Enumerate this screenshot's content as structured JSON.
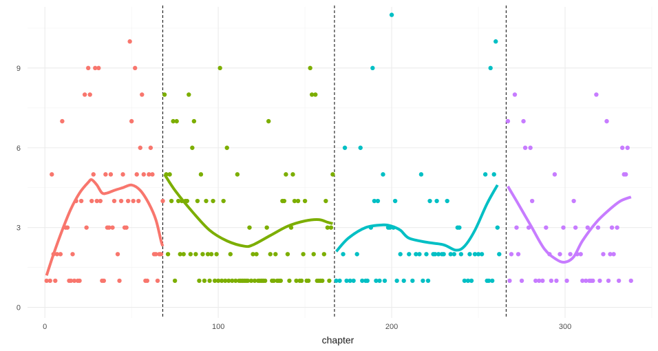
{
  "chart_data": {
    "type": "scatter",
    "title": "",
    "xlabel": "chapter",
    "ylabel": "",
    "xlim": [
      -10,
      350
    ],
    "ylim": [
      -0.4,
      11.3
    ],
    "x_ticks": [
      0,
      100,
      200,
      300
    ],
    "y_ticks": [
      0,
      3,
      6,
      9
    ],
    "grid": true,
    "legend": "none",
    "vlines": [
      68,
      167,
      266
    ],
    "series": [
      {
        "color": "#F8766D",
        "points": [
          [
            1,
            1
          ],
          [
            3,
            1
          ],
          [
            4,
            5
          ],
          [
            5,
            2
          ],
          [
            6,
            1
          ],
          [
            7,
            2
          ],
          [
            9,
            2
          ],
          [
            10,
            7
          ],
          [
            12,
            3
          ],
          [
            13,
            3
          ],
          [
            14,
            1
          ],
          [
            15,
            1
          ],
          [
            16,
            2
          ],
          [
            17,
            1
          ],
          [
            18,
            4
          ],
          [
            19,
            1
          ],
          [
            20,
            1
          ],
          [
            21,
            4
          ],
          [
            23,
            8
          ],
          [
            24,
            3
          ],
          [
            25,
            9
          ],
          [
            26,
            8
          ],
          [
            27,
            4
          ],
          [
            28,
            5
          ],
          [
            29,
            9
          ],
          [
            30,
            4
          ],
          [
            31,
            9
          ],
          [
            32,
            4
          ],
          [
            33,
            1
          ],
          [
            34,
            1
          ],
          [
            35,
            5
          ],
          [
            36,
            3
          ],
          [
            37,
            3
          ],
          [
            38,
            5
          ],
          [
            39,
            3
          ],
          [
            40,
            4
          ],
          [
            42,
            2
          ],
          [
            43,
            1
          ],
          [
            44,
            4
          ],
          [
            45,
            5
          ],
          [
            46,
            3
          ],
          [
            47,
            3
          ],
          [
            48,
            4
          ],
          [
            49,
            10
          ],
          [
            50,
            7
          ],
          [
            51,
            4
          ],
          [
            52,
            9
          ],
          [
            53,
            5
          ],
          [
            54,
            4
          ],
          [
            55,
            6
          ],
          [
            56,
            8
          ],
          [
            57,
            5
          ],
          [
            58,
            1
          ],
          [
            59,
            1
          ],
          [
            60,
            5
          ],
          [
            61,
            6
          ],
          [
            62,
            5
          ],
          [
            63,
            2
          ],
          [
            64,
            2
          ],
          [
            65,
            1
          ],
          [
            66,
            2
          ],
          [
            67,
            2
          ],
          [
            68,
            4
          ]
        ],
        "trend": [
          [
            1,
            1.2
          ],
          [
            5,
            2.0
          ],
          [
            10,
            2.9
          ],
          [
            15,
            3.7
          ],
          [
            20,
            4.3
          ],
          [
            25,
            4.7
          ],
          [
            27,
            4.8
          ],
          [
            30,
            4.6
          ],
          [
            33,
            4.3
          ],
          [
            36,
            4.3
          ],
          [
            40,
            4.4
          ],
          [
            45,
            4.5
          ],
          [
            50,
            4.6
          ],
          [
            55,
            4.4
          ],
          [
            60,
            3.9
          ],
          [
            64,
            3.3
          ],
          [
            67,
            2.5
          ],
          [
            68,
            2.3
          ]
        ]
      },
      {
        "color": "#7CAE00",
        "points": [
          [
            69,
            8
          ],
          [
            70,
            5
          ],
          [
            71,
            2
          ],
          [
            72,
            5
          ],
          [
            73,
            4
          ],
          [
            74,
            7
          ],
          [
            75,
            1
          ],
          [
            76,
            7
          ],
          [
            77,
            4
          ],
          [
            78,
            2
          ],
          [
            79,
            4
          ],
          [
            80,
            2
          ],
          [
            81,
            4
          ],
          [
            82,
            4
          ],
          [
            83,
            8
          ],
          [
            84,
            2
          ],
          [
            85,
            6
          ],
          [
            86,
            7
          ],
          [
            87,
            2
          ],
          [
            88,
            4
          ],
          [
            89,
            1
          ],
          [
            90,
            5
          ],
          [
            91,
            2
          ],
          [
            92,
            1
          ],
          [
            93,
            4
          ],
          [
            94,
            2
          ],
          [
            95,
            1
          ],
          [
            96,
            2
          ],
          [
            97,
            4
          ],
          [
            98,
            1
          ],
          [
            99,
            2
          ],
          [
            100,
            1
          ],
          [
            101,
            9
          ],
          [
            102,
            1
          ],
          [
            103,
            4
          ],
          [
            104,
            1
          ],
          [
            105,
            6
          ],
          [
            106,
            1
          ],
          [
            107,
            2
          ],
          [
            108,
            1
          ],
          [
            110,
            1
          ],
          [
            111,
            5
          ],
          [
            112,
            1
          ],
          [
            113,
            1
          ],
          [
            114,
            1
          ],
          [
            115,
            1
          ],
          [
            116,
            1
          ],
          [
            117,
            1
          ],
          [
            118,
            3
          ],
          [
            119,
            1
          ],
          [
            120,
            2
          ],
          [
            121,
            1
          ],
          [
            122,
            2
          ],
          [
            123,
            1
          ],
          [
            124,
            1
          ],
          [
            125,
            1
          ],
          [
            126,
            1
          ],
          [
            127,
            1
          ],
          [
            128,
            3
          ],
          [
            129,
            7
          ],
          [
            130,
            2
          ],
          [
            131,
            1
          ],
          [
            132,
            1
          ],
          [
            133,
            2
          ],
          [
            134,
            1
          ],
          [
            135,
            1
          ],
          [
            136,
            1
          ],
          [
            137,
            4
          ],
          [
            138,
            4
          ],
          [
            139,
            5
          ],
          [
            140,
            2
          ],
          [
            141,
            1
          ],
          [
            142,
            3
          ],
          [
            143,
            5
          ],
          [
            144,
            4
          ],
          [
            145,
            1
          ],
          [
            146,
            4
          ],
          [
            147,
            1
          ],
          [
            148,
            1
          ],
          [
            149,
            2
          ],
          [
            150,
            4
          ],
          [
            151,
            1
          ],
          [
            152,
            1
          ],
          [
            153,
            9
          ],
          [
            154,
            8
          ],
          [
            155,
            2
          ],
          [
            156,
            8
          ],
          [
            157,
            1
          ],
          [
            158,
            1
          ],
          [
            159,
            1
          ],
          [
            160,
            1
          ],
          [
            161,
            2
          ],
          [
            162,
            4
          ],
          [
            163,
            3
          ],
          [
            164,
            1
          ],
          [
            165,
            3
          ],
          [
            166,
            5
          ]
        ],
        "trend": [
          [
            69,
            5.0
          ],
          [
            75,
            4.4
          ],
          [
            85,
            3.6
          ],
          [
            95,
            2.9
          ],
          [
            105,
            2.5
          ],
          [
            115,
            2.3
          ],
          [
            120,
            2.35
          ],
          [
            130,
            2.7
          ],
          [
            140,
            3.05
          ],
          [
            150,
            3.25
          ],
          [
            158,
            3.3
          ],
          [
            163,
            3.2
          ],
          [
            166,
            3.15
          ]
        ]
      },
      {
        "color": "#00BFC4",
        "points": [
          [
            168,
            1
          ],
          [
            170,
            1
          ],
          [
            172,
            2
          ],
          [
            173,
            6
          ],
          [
            174,
            1
          ],
          [
            176,
            1
          ],
          [
            178,
            1
          ],
          [
            180,
            2
          ],
          [
            182,
            6
          ],
          [
            183,
            1
          ],
          [
            185,
            1
          ],
          [
            186,
            1
          ],
          [
            188,
            3
          ],
          [
            189,
            9
          ],
          [
            190,
            4
          ],
          [
            191,
            1
          ],
          [
            192,
            4
          ],
          [
            193,
            1
          ],
          [
            195,
            5
          ],
          [
            196,
            1
          ],
          [
            198,
            3
          ],
          [
            199,
            3
          ],
          [
            200,
            11
          ],
          [
            201,
            3
          ],
          [
            202,
            4
          ],
          [
            203,
            1
          ],
          [
            205,
            2
          ],
          [
            207,
            1
          ],
          [
            210,
            2
          ],
          [
            212,
            1
          ],
          [
            214,
            2
          ],
          [
            216,
            2
          ],
          [
            217,
            5
          ],
          [
            218,
            1
          ],
          [
            220,
            2
          ],
          [
            221,
            1
          ],
          [
            222,
            4
          ],
          [
            224,
            2
          ],
          [
            225,
            2
          ],
          [
            226,
            4
          ],
          [
            227,
            2
          ],
          [
            229,
            2
          ],
          [
            230,
            2
          ],
          [
            232,
            4
          ],
          [
            234,
            2
          ],
          [
            236,
            2
          ],
          [
            238,
            3
          ],
          [
            239,
            3
          ],
          [
            240,
            2
          ],
          [
            242,
            1
          ],
          [
            244,
            1
          ],
          [
            245,
            2
          ],
          [
            246,
            1
          ],
          [
            248,
            2
          ],
          [
            250,
            2
          ],
          [
            252,
            2
          ],
          [
            254,
            5
          ],
          [
            255,
            1
          ],
          [
            256,
            1
          ],
          [
            257,
            9
          ],
          [
            258,
            1
          ],
          [
            259,
            5
          ],
          [
            260,
            10
          ],
          [
            261,
            3
          ],
          [
            262,
            2
          ]
        ],
        "trend": [
          [
            168,
            2.1
          ],
          [
            175,
            2.6
          ],
          [
            185,
            3.0
          ],
          [
            195,
            3.1
          ],
          [
            200,
            3.05
          ],
          [
            205,
            2.9
          ],
          [
            210,
            2.6
          ],
          [
            220,
            2.45
          ],
          [
            230,
            2.35
          ],
          [
            237,
            2.15
          ],
          [
            242,
            2.3
          ],
          [
            248,
            2.9
          ],
          [
            255,
            3.9
          ],
          [
            261,
            4.6
          ]
        ]
      },
      {
        "color": "#C77CFF",
        "points": [
          [
            267,
            7
          ],
          [
            268,
            1
          ],
          [
            269,
            2
          ],
          [
            271,
            8
          ],
          [
            272,
            3
          ],
          [
            273,
            2
          ],
          [
            275,
            1
          ],
          [
            276,
            7
          ],
          [
            277,
            6
          ],
          [
            279,
            3
          ],
          [
            280,
            6
          ],
          [
            281,
            4
          ],
          [
            283,
            1
          ],
          [
            285,
            1
          ],
          [
            287,
            1
          ],
          [
            289,
            3
          ],
          [
            291,
            2
          ],
          [
            292,
            1
          ],
          [
            294,
            5
          ],
          [
            295,
            1
          ],
          [
            297,
            2
          ],
          [
            299,
            3
          ],
          [
            301,
            1
          ],
          [
            303,
            2
          ],
          [
            305,
            4
          ],
          [
            306,
            3
          ],
          [
            307,
            2
          ],
          [
            309,
            2
          ],
          [
            310,
            1
          ],
          [
            312,
            1
          ],
          [
            313,
            3
          ],
          [
            314,
            1
          ],
          [
            315,
            1
          ],
          [
            316,
            1
          ],
          [
            318,
            8
          ],
          [
            319,
            3
          ],
          [
            320,
            1
          ],
          [
            322,
            2
          ],
          [
            324,
            7
          ],
          [
            325,
            1
          ],
          [
            326,
            2
          ],
          [
            327,
            3
          ],
          [
            328,
            2
          ],
          [
            330,
            3
          ],
          [
            331,
            1
          ],
          [
            333,
            6
          ],
          [
            334,
            5
          ],
          [
            335,
            5
          ],
          [
            336,
            6
          ],
          [
            338,
            1
          ]
        ],
        "trend": [
          [
            267,
            4.55
          ],
          [
            272,
            4.0
          ],
          [
            280,
            3.1
          ],
          [
            288,
            2.2
          ],
          [
            295,
            1.8
          ],
          [
            300,
            1.7
          ],
          [
            305,
            1.9
          ],
          [
            310,
            2.5
          ],
          [
            318,
            3.2
          ],
          [
            326,
            3.7
          ],
          [
            332,
            4.0
          ],
          [
            338,
            4.15
          ]
        ]
      }
    ]
  }
}
